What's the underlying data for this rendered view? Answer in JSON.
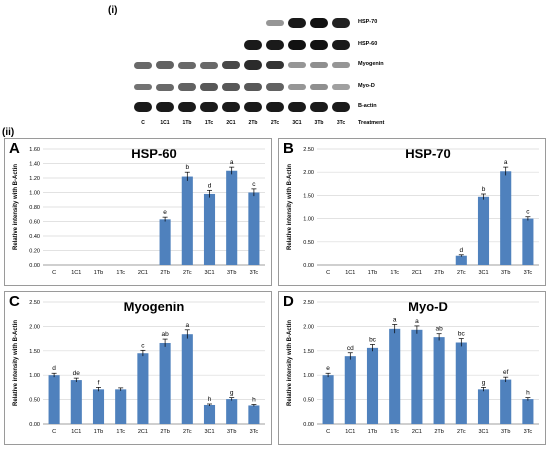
{
  "figure": {
    "part_i_label": "(i)",
    "part_ii_label": "(ii)"
  },
  "blot": {
    "lanes": [
      "C",
      "1C1",
      "1Tb",
      "1Tc",
      "2C1",
      "2Tb",
      "2Tc",
      "3C1",
      "3Tb",
      "3Tc"
    ],
    "treatment_label": "Treatment",
    "rows": [
      {
        "label": "HSP-70",
        "intensities": [
          0,
          0,
          0,
          0,
          0,
          0,
          0.25,
          0.95,
          1.0,
          0.9
        ]
      },
      {
        "label": "HSP-60",
        "intensities": [
          0,
          0,
          0,
          0,
          0,
          0.95,
          0.95,
          1.0,
          1.0,
          0.95
        ]
      },
      {
        "label": "Myogenin",
        "intensities": [
          0.5,
          0.55,
          0.5,
          0.5,
          0.7,
          0.85,
          0.8,
          0.25,
          0.3,
          0.25
        ]
      },
      {
        "label": "Myo-D",
        "intensities": [
          0.45,
          0.5,
          0.55,
          0.6,
          0.6,
          0.6,
          0.55,
          0.25,
          0.3,
          0.2
        ]
      },
      {
        "label": "B-actin",
        "intensities": [
          0.95,
          0.95,
          0.95,
          0.95,
          0.95,
          0.95,
          0.95,
          0.95,
          0.95,
          0.95
        ]
      }
    ]
  },
  "colors": {
    "bar": "#4f81bd",
    "grid": "#d9d9d9",
    "band": "#111111"
  },
  "chart_data": [
    {
      "panel": "A",
      "type": "bar",
      "title": "HSP-60",
      "ylabel": "Relative intensity with B-Actin",
      "categories": [
        "C",
        "1C1",
        "1Tb",
        "1Tc",
        "2C1",
        "2Tb",
        "2Tc",
        "3C1",
        "3Tb",
        "3Tc"
      ],
      "values": [
        0,
        0,
        0,
        0,
        0,
        0.63,
        1.22,
        0.98,
        1.3,
        1.0
      ],
      "errors": [
        0,
        0,
        0,
        0,
        0,
        0.03,
        0.06,
        0.05,
        0.05,
        0.05
      ],
      "letters": [
        "",
        "",
        "",
        "",
        "",
        "e",
        "b",
        "d",
        "a",
        "c"
      ],
      "ylim": [
        0,
        1.6
      ],
      "ticks": [
        "0.00",
        "0.20",
        "0.40",
        "0.60",
        "0.80",
        "1.00",
        "1.20",
        "1.40",
        "1.60"
      ],
      "grid": true
    },
    {
      "panel": "B",
      "type": "bar",
      "title": "HSP-70",
      "ylabel": "Relative intensity with B-Actin",
      "categories": [
        "C",
        "1C1",
        "1Tb",
        "1Tc",
        "2C1",
        "2Tb",
        "2Tc",
        "3C1",
        "3Tb",
        "3Tc"
      ],
      "values": [
        0,
        0,
        0,
        0,
        0,
        0,
        0.2,
        1.47,
        2.02,
        1.0
      ],
      "errors": [
        0,
        0,
        0,
        0,
        0,
        0,
        0.02,
        0.06,
        0.09,
        0.04
      ],
      "letters": [
        "",
        "",
        "",
        "",
        "",
        "",
        "d",
        "b",
        "a",
        "c"
      ],
      "ylim": [
        0,
        2.5
      ],
      "ticks": [
        "0.00",
        "0.50",
        "1.00",
        "1.50",
        "2.00",
        "2.50"
      ],
      "grid": true
    },
    {
      "panel": "C",
      "type": "bar",
      "title": "Myogenin",
      "ylabel": "Relative intensity with B-Actin",
      "categories": [
        "C",
        "1C1",
        "1Tb",
        "1Tc",
        "2C1",
        "2Tb",
        "2Tc",
        "3C1",
        "3Tb",
        "3Tc"
      ],
      "values": [
        1.0,
        0.9,
        0.71,
        0.71,
        1.45,
        1.66,
        1.84,
        0.39,
        0.51,
        0.38
      ],
      "errors": [
        0.04,
        0.04,
        0.04,
        0.03,
        0.06,
        0.08,
        0.09,
        0.02,
        0.03,
        0.02
      ],
      "letters": [
        "d",
        "de",
        "f",
        "",
        "c",
        "ab",
        "a",
        "h",
        "g",
        "h"
      ],
      "ylim": [
        0,
        2.5
      ],
      "ticks": [
        "0.00",
        "0.50",
        "1.00",
        "1.50",
        "2.00",
        "2.50"
      ],
      "grid": true
    },
    {
      "panel": "D",
      "type": "bar",
      "title": "Myo-D",
      "ylabel": "Relative intensity with B-Actin",
      "categories": [
        "C",
        "1C1",
        "1Tb",
        "1Tc",
        "2C1",
        "2Tb",
        "2Tc",
        "3C1",
        "3Tb",
        "3Tc"
      ],
      "values": [
        1.0,
        1.39,
        1.56,
        1.95,
        1.93,
        1.78,
        1.67,
        0.71,
        0.91,
        0.51
      ],
      "errors": [
        0.04,
        0.07,
        0.07,
        0.09,
        0.08,
        0.07,
        0.08,
        0.04,
        0.05,
        0.03
      ],
      "letters": [
        "e",
        "cd",
        "bc",
        "a",
        "a",
        "ab",
        "bc",
        "g",
        "ef",
        "h"
      ],
      "ylim": [
        0,
        2.5
      ],
      "ticks": [
        "0.00",
        "0.50",
        "1.00",
        "1.50",
        "2.00",
        "2.50"
      ],
      "grid": true
    }
  ]
}
